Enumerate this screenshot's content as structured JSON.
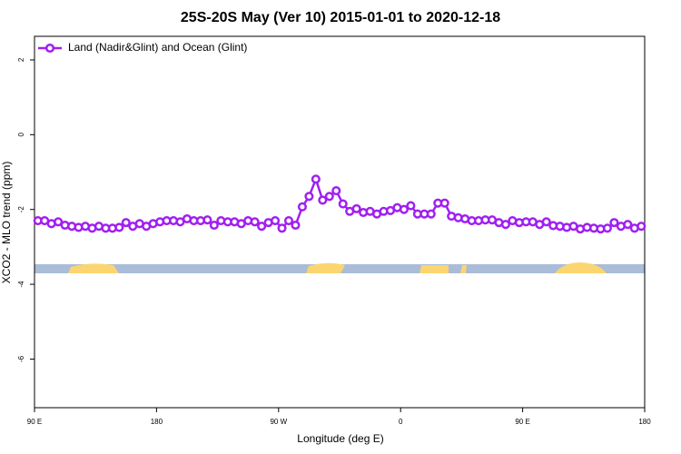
{
  "chart_data": {
    "type": "line",
    "title": "25S-20S May (Ver 10)   2015-01-01 to 2020-12-18",
    "xlabel": "Longitude (deg E)",
    "ylabel": "XCO2 - MLO trend (ppm)",
    "x": [
      92.5,
      97.5,
      102.5,
      107.5,
      112.5,
      117.5,
      122.5,
      127.5,
      132.5,
      137.5,
      142.5,
      147.5,
      152.5,
      157.5,
      162.5,
      167.5,
      172.5,
      177.5,
      182.5,
      187.5,
      192.5,
      197.5,
      202.5,
      207.5,
      212.5,
      217.5,
      222.5,
      227.5,
      232.5,
      237.5,
      242.5,
      247.5,
      252.5,
      257.5,
      262.5,
      267.5,
      272.5,
      277.5,
      282.5,
      287.5,
      292.5,
      297.5,
      302.5,
      307.5,
      312.5,
      317.5,
      322.5,
      327.5,
      332.5,
      337.5,
      342.5,
      347.5,
      352.5,
      357.5,
      362.5,
      367.5,
      372.5,
      377.5,
      382.5,
      387.5,
      392.5,
      397.5,
      402.5,
      407.5,
      412.5,
      417.5,
      422.5,
      427.5,
      432.5,
      437.5,
      442.5,
      447.5,
      452.5,
      457.5,
      462.5,
      467.5,
      472.5,
      477.5,
      482.5,
      487.5,
      492.5,
      497.5,
      502.5,
      507.5,
      512.5,
      517.5,
      522.5,
      527.5,
      532.5,
      537.5
    ],
    "series": [
      {
        "name": "Land (Nadir&Glint) and Ocean (Glint)",
        "color": "#a020f0",
        "values": [
          -2.3,
          -2.3,
          -2.38,
          -2.33,
          -2.42,
          -2.45,
          -2.48,
          -2.45,
          -2.5,
          -2.45,
          -2.5,
          -2.5,
          -2.48,
          -2.35,
          -2.45,
          -2.38,
          -2.45,
          -2.38,
          -2.33,
          -2.3,
          -2.3,
          -2.33,
          -2.25,
          -2.3,
          -2.3,
          -2.28,
          -2.42,
          -2.3,
          -2.33,
          -2.33,
          -2.38,
          -2.3,
          -2.33,
          -2.45,
          -2.35,
          -2.3,
          -2.5,
          -2.3,
          -2.42,
          -1.93,
          -1.65,
          -1.19,
          -1.75,
          -1.65,
          -1.5,
          -1.85,
          -2.05,
          -1.98,
          -2.08,
          -2.05,
          -2.12,
          -2.05,
          -2.03,
          -1.95,
          -2.0,
          -1.9,
          -2.12,
          -2.12,
          -2.12,
          -1.83,
          -1.83,
          -2.18,
          -2.22,
          -2.25,
          -2.3,
          -2.3,
          -2.28,
          -2.28,
          -2.35,
          -2.4,
          -2.3,
          -2.35,
          -2.33,
          -2.33,
          -2.4,
          -2.33,
          -2.43,
          -2.45,
          -2.48,
          -2.45,
          -2.52,
          -2.48,
          -2.5,
          -2.52,
          -2.5,
          -2.35,
          -2.45,
          -2.4,
          -2.5,
          -2.45
        ]
      }
    ],
    "xlim": [
      90,
      540
    ],
    "xticks": [
      {
        "value": 90,
        "label": "90 E"
      },
      180,
      {
        "value": 270,
        "label": "90 W"
      },
      {
        "value": 360,
        "label": "0"
      },
      {
        "value": 450,
        "label": "90 E"
      },
      {
        "value": 540,
        "label": "180"
      }
    ],
    "ylim": [
      -7.3,
      2.63
    ],
    "yticks": [
      2,
      0,
      -2,
      -4,
      -6
    ],
    "grid": false,
    "legend": "topleft"
  }
}
